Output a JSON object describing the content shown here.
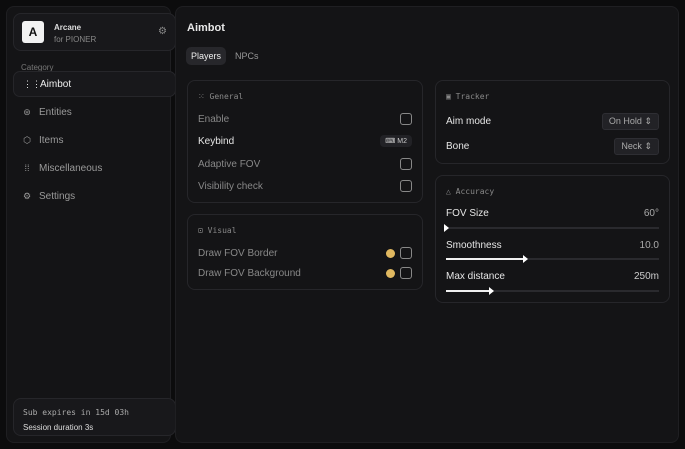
{
  "brand": {
    "logo": "A",
    "name": "Arcane",
    "subtitle": "for PIONER"
  },
  "sidebar": {
    "category_label": "Category",
    "items": [
      {
        "label": "Aimbot",
        "icon": "crosshair-icon",
        "glyph": "⋮⋮",
        "active": true
      },
      {
        "label": "Entities",
        "icon": "entities-icon",
        "glyph": "⊛"
      },
      {
        "label": "Items",
        "icon": "cube-icon",
        "glyph": "⬡"
      },
      {
        "label": "Miscellaneous",
        "icon": "grid-icon",
        "glyph": "⁞⁞"
      },
      {
        "label": "Settings",
        "icon": "gear-icon",
        "glyph": "⚙"
      }
    ]
  },
  "footer": {
    "expires": "Sub expires in 15d 03h",
    "session": "Session duration 3s"
  },
  "main": {
    "title": "Aimbot",
    "tabs": [
      {
        "label": "Players",
        "active": true
      },
      {
        "label": "NPCs"
      }
    ]
  },
  "general": {
    "title": "General",
    "enable": "Enable",
    "keybind": "Keybind",
    "keybind_value": "M2",
    "adaptive": "Adaptive FOV",
    "visibility": "Visibility check"
  },
  "visual": {
    "title": "Visual",
    "border": "Draw FOV Border",
    "background": "Draw FOV Background",
    "color": "#e0b860"
  },
  "tracker": {
    "title": "Tracker",
    "aim_mode": "Aim mode",
    "aim_mode_value": "On Hold",
    "bone": "Bone",
    "bone_value": "Neck"
  },
  "accuracy": {
    "title": "Accuracy",
    "fov": {
      "label": "FOV Size",
      "value": "60°",
      "fraction": 0
    },
    "smooth": {
      "label": "Smoothness",
      "value": "10.0",
      "fraction": 0.37
    },
    "dist": {
      "label": "Max distance",
      "value": "250m",
      "fraction": 0.21
    }
  }
}
